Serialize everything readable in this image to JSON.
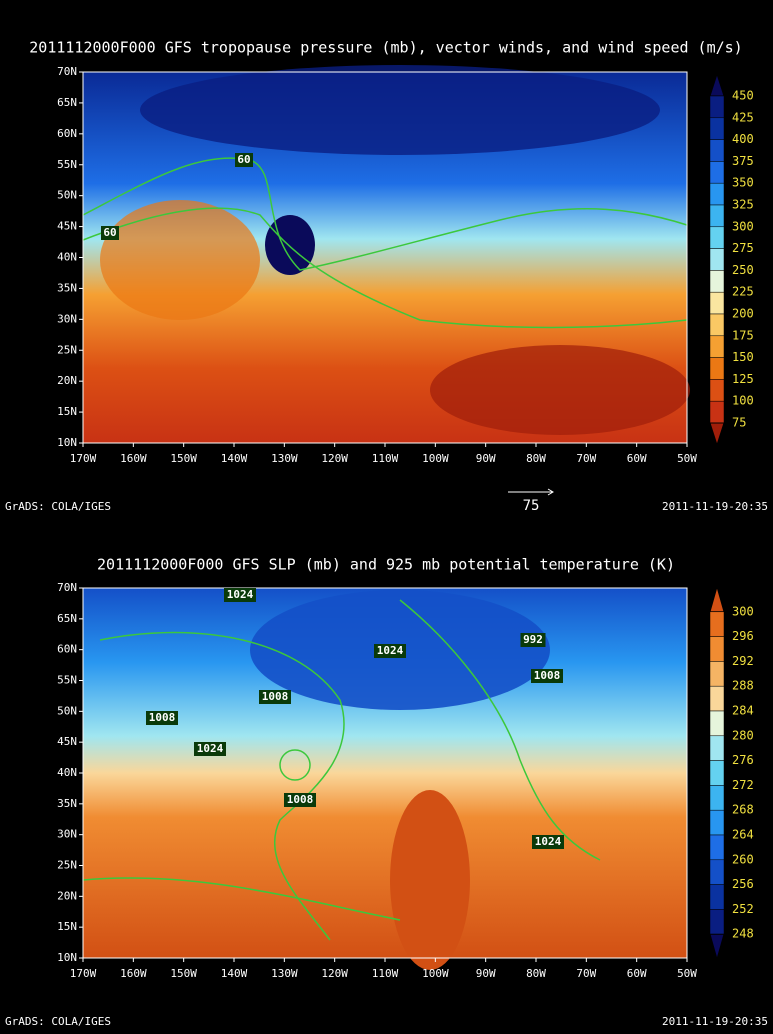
{
  "panels": [
    {
      "title": "2011112000F000 GFS tropopause pressure (mb), vector winds, and wind speed (m/s)",
      "lat_labels": [
        "70N",
        "65N",
        "60N",
        "55N",
        "50N",
        "45N",
        "40N",
        "35N",
        "30N",
        "25N",
        "20N",
        "15N",
        "10N"
      ],
      "lon_labels": [
        "170W",
        "160W",
        "150W",
        "140W",
        "130W",
        "120W",
        "110W",
        "100W",
        "90W",
        "80W",
        "70W",
        "60W",
        "50W"
      ],
      "colorbar": {
        "labels": [
          "450",
          "425",
          "400",
          "375",
          "350",
          "325",
          "300",
          "275",
          "250",
          "225",
          "200",
          "175",
          "150",
          "125",
          "100",
          "75"
        ],
        "colors": [
          "#0a0a5a",
          "#0a1e82",
          "#0a32a0",
          "#1450c8",
          "#1e6ee6",
          "#2896f0",
          "#3cb4f0",
          "#64d2f0",
          "#a0e6f0",
          "#e6f5dc",
          "#fae6a0",
          "#fac864",
          "#f5a032",
          "#eb7814",
          "#dc5014",
          "#c83214",
          "#a01e0a"
        ]
      },
      "contour_labels": [
        "60",
        "60"
      ],
      "vector_ref": "75",
      "footer_left": "GrADS: COLA/IGES",
      "footer_right": "2011-11-19-20:35"
    },
    {
      "title": "2011112000F000 GFS SLP (mb) and 925 mb potential temperature (K)",
      "lat_labels": [
        "70N",
        "65N",
        "60N",
        "55N",
        "50N",
        "45N",
        "40N",
        "35N",
        "30N",
        "25N",
        "20N",
        "15N",
        "10N"
      ],
      "lon_labels": [
        "170W",
        "160W",
        "150W",
        "140W",
        "130W",
        "120W",
        "110W",
        "100W",
        "90W",
        "80W",
        "70W",
        "60W",
        "50W"
      ],
      "colorbar": {
        "labels": [
          "300",
          "296",
          "292",
          "288",
          "284",
          "280",
          "276",
          "272",
          "268",
          "264",
          "260",
          "256",
          "252",
          "248"
        ],
        "colors": [
          "#d25014",
          "#e66e1e",
          "#f08c32",
          "#f5b464",
          "#fad79a",
          "#e6f5dc",
          "#a0e6f0",
          "#64d2f0",
          "#3cb4f0",
          "#2896f0",
          "#1e6ee6",
          "#1450c8",
          "#0a32a0",
          "#0a1e82",
          "#0a0a5a"
        ]
      },
      "contour_labels": [
        "1024",
        "992",
        "1024",
        "1008",
        "1008",
        "1008",
        "1024",
        "1008",
        "1024"
      ],
      "footer_left": "GrADS: COLA/IGES",
      "footer_right": "2011-11-19-20:35"
    }
  ]
}
